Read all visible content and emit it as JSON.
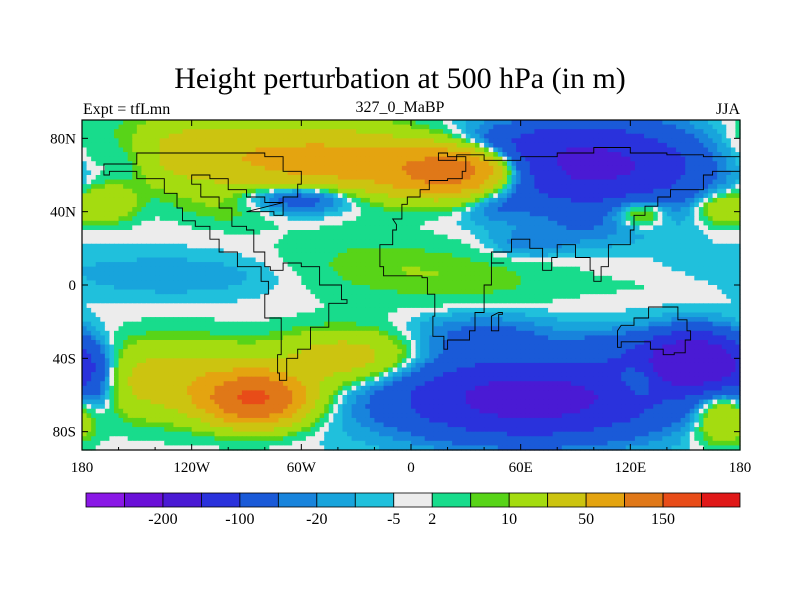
{
  "header": {
    "title": "Height perturbation at 500 hPa (in m)",
    "left": "Expt = tfLmn",
    "center": "327_0_MaBP",
    "right": "JJA"
  },
  "chart_data": {
    "type": "heatmap",
    "title": "Height perturbation at 500 hPa (in m)",
    "x_ticks": [
      "180",
      "120W",
      "60W",
      "0",
      "60E",
      "120E",
      "180"
    ],
    "x_tick_values": [
      -180,
      -120,
      -60,
      0,
      60,
      120,
      180
    ],
    "y_ticks": [
      "80N",
      "40N",
      "0",
      "40S",
      "80S"
    ],
    "y_tick_values": [
      80,
      40,
      0,
      -40,
      -80
    ],
    "xlim": [
      -180,
      180
    ],
    "ylim": [
      -90,
      90
    ],
    "colorbar": {
      "colors": [
        "#8a18e6",
        "#6a10d8",
        "#4a1ad4",
        "#2a32dc",
        "#1a5ad8",
        "#1884dc",
        "#18a4dc",
        "#20c0dc",
        "#ececec",
        "#18dc8c",
        "#58d418",
        "#a4dc10",
        "#ccc410",
        "#e4a410",
        "#e07818",
        "#e84c18",
        "#e01818"
      ],
      "labels": [
        "-200",
        "-100",
        "-20",
        "-5",
        "2",
        "10",
        "50",
        "150"
      ],
      "label_after_box": [
        1,
        3,
        5,
        7,
        8,
        10,
        12,
        14
      ]
    },
    "fields": [
      {
        "lon": -105,
        "lat": 72,
        "sx": 55,
        "sy": 14,
        "value": 30
      },
      {
        "lon": -30,
        "lat": 65,
        "sx": 40,
        "sy": 12,
        "value": 40
      },
      {
        "lon": 25,
        "lat": 62,
        "sx": 22,
        "sy": 9,
        "value": 90
      },
      {
        "lon": -155,
        "lat": 70,
        "sx": 12,
        "sy": 12,
        "value": -12
      },
      {
        "lon": -165,
        "lat": 45,
        "sx": 10,
        "sy": 7,
        "value": 20
      },
      {
        "lon": -60,
        "lat": 48,
        "sx": 22,
        "sy": 6,
        "value": -30
      },
      {
        "lon": -100,
        "lat": 42,
        "sx": 18,
        "sy": 7,
        "value": 6
      },
      {
        "lon": 100,
        "lat": 65,
        "sx": 42,
        "sy": 15,
        "value": -70
      },
      {
        "lon": 60,
        "lat": 78,
        "sx": 30,
        "sy": 6,
        "value": -12
      },
      {
        "lon": 45,
        "lat": 43,
        "sx": 10,
        "sy": 6,
        "value": -8
      },
      {
        "lon": 125,
        "lat": 40,
        "sx": 10,
        "sy": 6,
        "value": 22
      },
      {
        "lon": 170,
        "lat": 42,
        "sx": 10,
        "sy": 6,
        "value": 20
      },
      {
        "lon": 65,
        "lat": 22,
        "sx": 15,
        "sy": 5,
        "value": -9
      },
      {
        "lon": 95,
        "lat": 30,
        "sx": 25,
        "sy": 6,
        "value": -7
      },
      {
        "lon": -130,
        "lat": 5,
        "sx": 50,
        "sy": 8,
        "value": -6
      },
      {
        "lon": -20,
        "lat": 10,
        "sx": 40,
        "sy": 12,
        "value": 7
      },
      {
        "lon": 40,
        "lat": 2,
        "sx": 35,
        "sy": 10,
        "value": 5
      },
      {
        "lon": 140,
        "lat": 0,
        "sx": 35,
        "sy": 6,
        "value": 2
      },
      {
        "lon": -130,
        "lat": -52,
        "sx": 38,
        "sy": 14,
        "value": 30
      },
      {
        "lon": -85,
        "lat": -62,
        "sx": 18,
        "sy": 9,
        "value": 120
      },
      {
        "lon": -35,
        "lat": -40,
        "sx": 25,
        "sy": 10,
        "value": 30
      },
      {
        "lon": -175,
        "lat": -55,
        "sx": 10,
        "sy": 12,
        "value": -25
      },
      {
        "lon": 65,
        "lat": -62,
        "sx": 48,
        "sy": 14,
        "value": -80
      },
      {
        "lon": 40,
        "lat": -28,
        "sx": 25,
        "sy": 8,
        "value": -15
      },
      {
        "lon": 110,
        "lat": -35,
        "sx": 20,
        "sy": 8,
        "value": -12
      },
      {
        "lon": 155,
        "lat": -42,
        "sx": 18,
        "sy": 10,
        "value": -120
      },
      {
        "lon": 125,
        "lat": -52,
        "sx": 8,
        "sy": 6,
        "value": 25
      },
      {
        "lon": 170,
        "lat": -72,
        "sx": 12,
        "sy": 9,
        "value": 30
      },
      {
        "lon": 160,
        "lat": -72,
        "sx": 10,
        "sy": 6,
        "value": -8
      }
    ],
    "continents": [
      [
        [
          -90,
          40
        ],
        [
          -75,
          38
        ],
        [
          -70,
          45
        ],
        [
          -80,
          48
        ],
        [
          -90,
          52
        ],
        [
          -100,
          58
        ],
        [
          -110,
          60
        ],
        [
          -120,
          55
        ],
        [
          -115,
          48
        ],
        [
          -105,
          42
        ],
        [
          -98,
          32
        ],
        [
          -90,
          30
        ],
        [
          -86,
          18
        ],
        [
          -80,
          10
        ],
        [
          -77,
          8
        ],
        [
          -70,
          12
        ],
        [
          -60,
          10
        ],
        [
          -50,
          0
        ],
        [
          -38,
          -8
        ],
        [
          -35,
          -10
        ],
        [
          -45,
          -23
        ],
        [
          -55,
          -35
        ],
        [
          -62,
          -40
        ],
        [
          -68,
          -52
        ],
        [
          -72,
          -48
        ],
        [
          -73,
          -38
        ],
        [
          -71,
          -18
        ],
        [
          -80,
          -5
        ],
        [
          -78,
          2
        ],
        [
          -82,
          10
        ],
        [
          -95,
          18
        ],
        [
          -105,
          25
        ],
        [
          -110,
          32
        ],
        [
          -118,
          35
        ],
        [
          -125,
          42
        ],
        [
          -128,
          50
        ],
        [
          -135,
          58
        ],
        [
          -150,
          62
        ],
        [
          -165,
          60
        ],
        [
          -168,
          66
        ],
        [
          -150,
          72
        ],
        [
          -120,
          72
        ],
        [
          -95,
          72
        ],
        [
          -80,
          70
        ],
        [
          -70,
          62
        ],
        [
          -60,
          55
        ],
        [
          -62,
          48
        ],
        [
          -70,
          45
        ]
      ],
      [
        [
          -10,
          36
        ],
        [
          -5,
          44
        ],
        [
          -2,
          48
        ],
        [
          5,
          52
        ],
        [
          10,
          57
        ],
        [
          15,
          57
        ],
        [
          20,
          58
        ],
        [
          28,
          62
        ],
        [
          30,
          70
        ],
        [
          20,
          72
        ],
        [
          15,
          68
        ],
        [
          25,
          71
        ],
        [
          40,
          68
        ],
        [
          60,
          70
        ],
        [
          80,
          72
        ],
        [
          100,
          75
        ],
        [
          120,
          72
        ],
        [
          140,
          71
        ],
        [
          160,
          70
        ],
        [
          180,
          68
        ],
        [
          180,
          62
        ],
        [
          165,
          60
        ],
        [
          160,
          52
        ],
        [
          142,
          48
        ],
        [
          135,
          43
        ],
        [
          128,
          38
        ],
        [
          122,
          30
        ],
        [
          120,
          22
        ],
        [
          108,
          18
        ],
        [
          108,
          10
        ],
        [
          104,
          2
        ],
        [
          100,
          8
        ],
        [
          98,
          15
        ],
        [
          90,
          22
        ],
        [
          80,
          15
        ],
        [
          77,
          8
        ],
        [
          72,
          20
        ],
        [
          65,
          25
        ],
        [
          57,
          25
        ],
        [
          55,
          18
        ],
        [
          44,
          12
        ],
        [
          51,
          12
        ],
        [
          44,
          0
        ],
        [
          40,
          -10
        ],
        [
          40,
          -15
        ],
        [
          35,
          -25
        ],
        [
          32,
          -30
        ],
        [
          20,
          -35
        ],
        [
          18,
          -28
        ],
        [
          12,
          -17
        ],
        [
          13,
          -5
        ],
        [
          9,
          4
        ],
        [
          6,
          5
        ],
        [
          -5,
          5
        ],
        [
          -15,
          10
        ],
        [
          -17,
          15
        ],
        [
          -17,
          22
        ],
        [
          -10,
          30
        ],
        [
          -8,
          33
        ]
      ],
      [
        [
          115,
          -22
        ],
        [
          122,
          -18
        ],
        [
          130,
          -12
        ],
        [
          137,
          -12
        ],
        [
          142,
          -12
        ],
        [
          146,
          -19
        ],
        [
          151,
          -25
        ],
        [
          153,
          -30
        ],
        [
          150,
          -37
        ],
        [
          144,
          -38
        ],
        [
          138,
          -35
        ],
        [
          131,
          -31
        ],
        [
          115,
          -34
        ],
        [
          113,
          -25
        ]
      ],
      [
        [
          48,
          -15
        ],
        [
          50,
          -16
        ],
        [
          48,
          -25
        ],
        [
          44,
          -24
        ],
        [
          44,
          -17
        ]
      ]
    ]
  }
}
